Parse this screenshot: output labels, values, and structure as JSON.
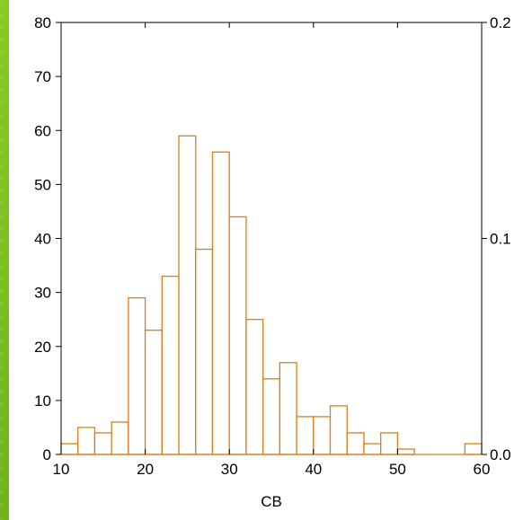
{
  "chart_data": {
    "type": "bar",
    "subtype": "histogram",
    "title": "",
    "xlabel": "CB",
    "ylabel": "",
    "y2label": "",
    "xlim": [
      10,
      60
    ],
    "ylim": [
      0,
      80
    ],
    "y2lim": [
      0.0,
      0.2
    ],
    "bin_width": 2,
    "bin_starts": [
      10,
      12,
      14,
      16,
      18,
      20,
      22,
      24,
      26,
      28,
      30,
      32,
      34,
      36,
      38,
      40,
      42,
      44,
      46,
      48,
      50,
      52,
      54,
      56,
      58
    ],
    "values": [
      2,
      5,
      4,
      6,
      29,
      23,
      33,
      59,
      38,
      56,
      44,
      25,
      14,
      17,
      7,
      7,
      9,
      4,
      2,
      4,
      1,
      0,
      0,
      0,
      2
    ],
    "x_ticks": [
      "10",
      "20",
      "30",
      "40",
      "50",
      "60"
    ],
    "y_ticks": [
      "0",
      "10",
      "20",
      "30",
      "40",
      "50",
      "60",
      "70",
      "80"
    ],
    "y2_ticks": [
      "0.0",
      "0.1",
      "0.2"
    ],
    "bar_fill": "#ffffff",
    "bar_stroke": "#e07b1a",
    "grid": false,
    "legend": "none"
  },
  "colors": {
    "background": "#7cc21e",
    "panel": "#ffffff"
  }
}
